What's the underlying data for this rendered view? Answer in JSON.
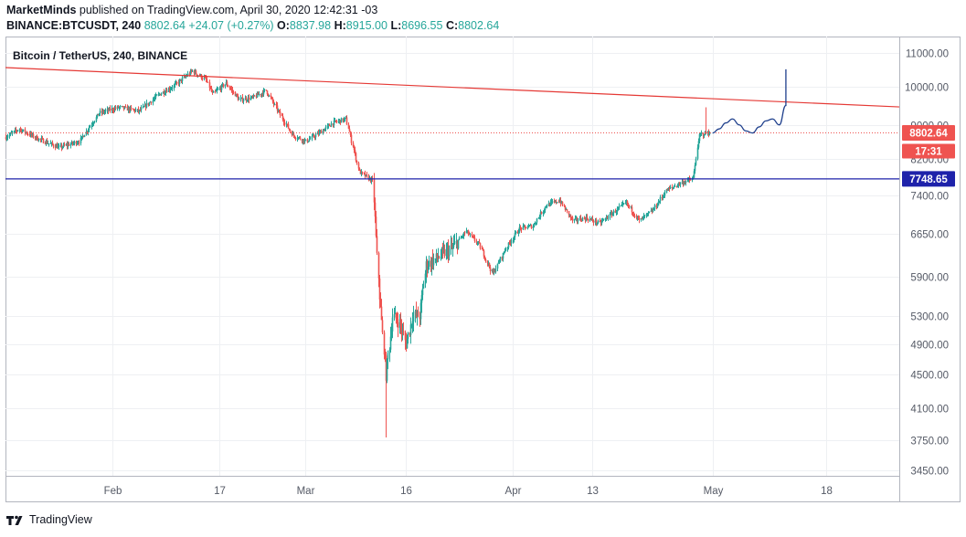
{
  "header": {
    "author": "MarketMinds",
    "published_text": "published on TradingView.com, April 30, 2020 12:42:31 -03",
    "symbol": "BINANCE:BTCUSDT, 240",
    "last": "8802.64",
    "change": "+24.07 (+0.27%)",
    "o_label": "O:",
    "o_value": "8837.98",
    "h_label": "H:",
    "h_value": "8915.00",
    "l_label": "L:",
    "l_value": "8696.55",
    "c_label": "C:",
    "c_value": "8802.64"
  },
  "footer": {
    "brand": "TradingView"
  },
  "colors": {
    "up": "#26a69a",
    "down": "#ef5350",
    "trendline": "#e53935",
    "support": "#1e22aa",
    "projection": "#1e3f8c",
    "grid": "#eef0f3",
    "axis": "#555a66"
  },
  "chart_data": {
    "type": "candlestick",
    "title": "Bitcoin / TetherUS, 240, BINANCE",
    "y_scale": "log",
    "ylim": [
      3400,
      11500
    ],
    "y_ticks": [
      11000,
      10000,
      9000,
      8200,
      7400,
      6650,
      5900,
      5300,
      4900,
      4500,
      4100,
      3750,
      3450
    ],
    "y_tick_labels": [
      "11000.00",
      "10000.00",
      "9000.00",
      "8200.00",
      "7400.00",
      "6650.00",
      "5900.00",
      "5300.00",
      "4900.00",
      "4500.00",
      "4100.00",
      "3750.00",
      "3450.00"
    ],
    "x_ticks": [
      {
        "label": "Feb",
        "date": "2020-02-01"
      },
      {
        "label": "17",
        "date": "2020-02-17"
      },
      {
        "label": "Mar",
        "date": "2020-03-01"
      },
      {
        "label": "16",
        "date": "2020-03-16"
      },
      {
        "label": "Apr",
        "date": "2020-04-01"
      },
      {
        "label": "13",
        "date": "2020-04-13"
      },
      {
        "label": "May",
        "date": "2020-05-01"
      },
      {
        "label": "18",
        "date": "2020-05-18"
      }
    ],
    "xlim": [
      "2020-01-16",
      "2020-05-29"
    ],
    "price_path": [
      [
        "2020-01-16",
        8700
      ],
      [
        "2020-01-18",
        8900
      ],
      [
        "2020-01-21",
        8650
      ],
      [
        "2020-01-24",
        8450
      ],
      [
        "2020-01-27",
        8600
      ],
      [
        "2020-01-30",
        9300
      ],
      [
        "2020-02-02",
        9450
      ],
      [
        "2020-02-05",
        9350
      ],
      [
        "2020-02-08",
        9800
      ],
      [
        "2020-02-10",
        10000
      ],
      [
        "2020-02-12",
        10300
      ],
      [
        "2020-02-13",
        10450
      ],
      [
        "2020-02-15",
        10200
      ],
      [
        "2020-02-16",
        9800
      ],
      [
        "2020-02-18",
        10100
      ],
      [
        "2020-02-20",
        9650
      ],
      [
        "2020-02-22",
        9700
      ],
      [
        "2020-02-24",
        9900
      ],
      [
        "2020-02-26",
        9300
      ],
      [
        "2020-02-28",
        8750
      ],
      [
        "2020-03-01",
        8600
      ],
      [
        "2020-03-03",
        8800
      ],
      [
        "2020-03-05",
        9050
      ],
      [
        "2020-03-07",
        9150
      ],
      [
        "2020-03-08",
        8500
      ],
      [
        "2020-03-09",
        7900
      ],
      [
        "2020-03-10",
        7800
      ],
      [
        "2020-03-11",
        7700
      ],
      [
        "2020-03-12",
        5600
      ],
      [
        "2020-03-13",
        4500
      ],
      [
        "2020-03-14",
        5300
      ],
      [
        "2020-03-15",
        5200
      ],
      [
        "2020-03-16",
        4900
      ],
      [
        "2020-03-17",
        5300
      ],
      [
        "2020-03-18",
        5300
      ],
      [
        "2020-03-19",
        6100
      ],
      [
        "2020-03-21",
        6250
      ],
      [
        "2020-03-23",
        6400
      ],
      [
        "2020-03-25",
        6700
      ],
      [
        "2020-03-27",
        6450
      ],
      [
        "2020-03-29",
        5950
      ],
      [
        "2020-03-31",
        6400
      ],
      [
        "2020-04-02",
        6750
      ],
      [
        "2020-04-04",
        6800
      ],
      [
        "2020-04-06",
        7200
      ],
      [
        "2020-04-08",
        7300
      ],
      [
        "2020-04-10",
        6900
      ],
      [
        "2020-04-12",
        6950
      ],
      [
        "2020-04-14",
        6850
      ],
      [
        "2020-04-16",
        7050
      ],
      [
        "2020-04-18",
        7250
      ],
      [
        "2020-04-20",
        6900
      ],
      [
        "2020-04-22",
        7100
      ],
      [
        "2020-04-24",
        7500
      ],
      [
        "2020-04-26",
        7650
      ],
      [
        "2020-04-28",
        7750
      ],
      [
        "2020-04-29",
        8750
      ],
      [
        "2020-04-30",
        8802.64
      ]
    ],
    "extremes": [
      {
        "date": "2020-02-13",
        "high": 10500
      },
      {
        "date": "2020-03-13",
        "low": 3782
      },
      {
        "date": "2020-04-30",
        "high": 9450
      }
    ],
    "trendline": {
      "start": [
        "2020-01-16",
        10550
      ],
      "end": [
        "2020-05-29",
        9460
      ]
    },
    "support": {
      "value": 7748.65,
      "label": "7748.65"
    },
    "last_price": {
      "value": 8802.64,
      "label": "8802.64",
      "countdown": "17:31"
    },
    "projection": [
      [
        "2020-05-01",
        8800
      ],
      [
        "2020-05-02",
        8900
      ],
      [
        "2020-05-03",
        9050
      ],
      [
        "2020-05-04",
        9150
      ],
      [
        "2020-05-05",
        9000
      ],
      [
        "2020-05-06",
        8850
      ],
      [
        "2020-05-07",
        8800
      ],
      [
        "2020-05-08",
        8950
      ],
      [
        "2020-05-09",
        9100
      ],
      [
        "2020-05-10",
        9150
      ],
      [
        "2020-05-11",
        9000
      ],
      [
        "2020-05-12",
        9500
      ],
      [
        "2020-05-12",
        10500
      ]
    ]
  }
}
